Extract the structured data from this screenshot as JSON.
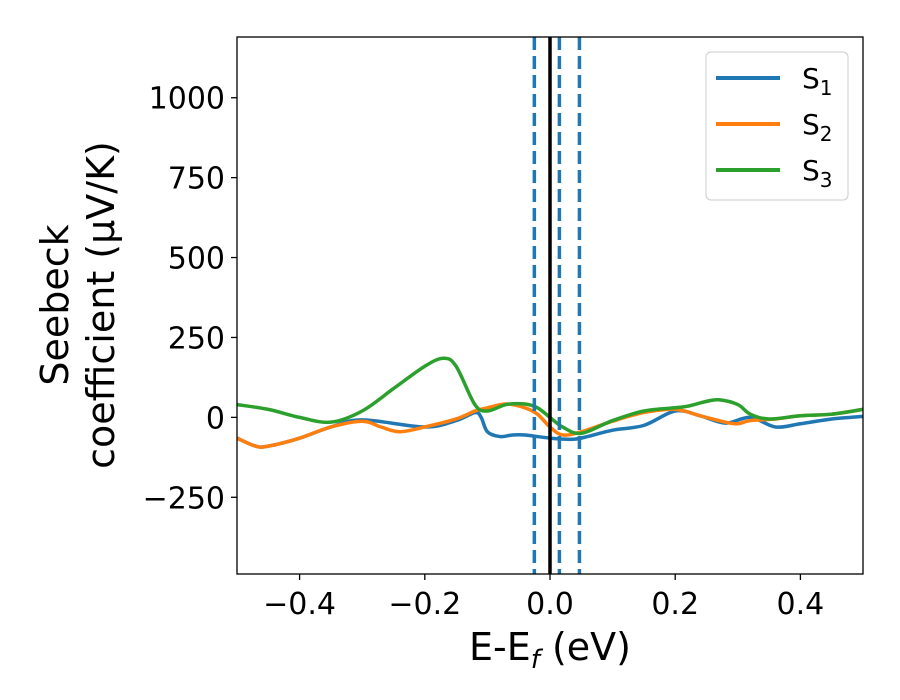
{
  "chart_data": {
    "type": "line",
    "title": "",
    "xlabel": {
      "base": "E-E",
      "sub": "f",
      "rest": " (eV)"
    },
    "ylabel": {
      "line1": "Seebeck",
      "line2": "coefficient  (μV/K)"
    },
    "xlim": [
      -0.5,
      0.5
    ],
    "ylim": [
      -490,
      1190
    ],
    "xticks": [
      -0.4,
      -0.2,
      0.0,
      0.2,
      0.4
    ],
    "xtick_labels": [
      "−0.4",
      "−0.2",
      "0.0",
      "0.2",
      "0.4"
    ],
    "yticks": [
      -250,
      0,
      250,
      500,
      750,
      1000
    ],
    "ytick_labels": [
      "−250",
      "0",
      "250",
      "500",
      "750",
      "1000"
    ],
    "grid": false,
    "legend_position": "top-right",
    "series": [
      {
        "name": "S1",
        "label_base": "S",
        "label_sub": "1",
        "color": "#1f77b4",
        "x": [
          -0.5,
          -0.47,
          -0.45,
          -0.4,
          -0.35,
          -0.3,
          -0.2,
          -0.15,
          -0.12,
          -0.11,
          -0.1,
          -0.08,
          -0.06,
          -0.04,
          -0.02,
          0.0,
          0.02,
          0.04,
          0.06,
          0.1,
          0.15,
          0.2,
          0.24,
          0.28,
          0.32,
          0.36,
          0.4,
          0.45,
          0.5
        ],
        "values": [
          -65,
          -90,
          -90,
          -65,
          -30,
          -8,
          -30,
          -10,
          15,
          0,
          -45,
          -60,
          -55,
          -55,
          -60,
          -65,
          -68,
          -68,
          -60,
          -40,
          -25,
          20,
          5,
          -18,
          0,
          -30,
          -20,
          -5,
          3
        ]
      },
      {
        "name": "S2",
        "label_base": "S",
        "label_sub": "2",
        "color": "#ff7f0e",
        "x": [
          -0.5,
          -0.47,
          -0.45,
          -0.4,
          -0.35,
          -0.3,
          -0.27,
          -0.24,
          -0.2,
          -0.15,
          -0.12,
          -0.1,
          -0.07,
          -0.04,
          -0.02,
          0.0,
          0.02,
          0.05,
          0.1,
          0.15,
          0.2,
          0.24,
          0.28,
          0.3,
          0.32,
          0.36,
          0.4,
          0.45,
          0.5
        ],
        "values": [
          -65,
          -90,
          -90,
          -65,
          -30,
          -12,
          -30,
          -45,
          -30,
          -5,
          20,
          30,
          42,
          30,
          10,
          -30,
          -55,
          -45,
          -12,
          15,
          25,
          5,
          -15,
          -20,
          -10,
          -5,
          5,
          10,
          25
        ]
      },
      {
        "name": "S3",
        "label_base": "S",
        "label_sub": "3",
        "color": "#2ca02c",
        "x": [
          -0.5,
          -0.45,
          -0.4,
          -0.35,
          -0.3,
          -0.25,
          -0.2,
          -0.17,
          -0.15,
          -0.12,
          -0.1,
          -0.07,
          -0.04,
          -0.02,
          0.0,
          0.02,
          0.05,
          0.1,
          0.15,
          0.2,
          0.22,
          0.25,
          0.27,
          0.3,
          0.32,
          0.35,
          0.4,
          0.45,
          0.5
        ],
        "values": [
          40,
          25,
          0,
          -15,
          20,
          90,
          160,
          185,
          160,
          40,
          20,
          40,
          42,
          30,
          0,
          -30,
          -50,
          -10,
          20,
          30,
          35,
          50,
          55,
          40,
          10,
          -5,
          5,
          10,
          25
        ]
      }
    ],
    "vlines": [
      {
        "x": -0.025,
        "style": "dashed",
        "color": "#1f77b4"
      },
      {
        "x": 0.0,
        "style": "solid",
        "color": "#000000"
      },
      {
        "x": 0.015,
        "style": "dashed",
        "color": "#1f77b4"
      },
      {
        "x": 0.047,
        "style": "dashed",
        "color": "#1f77b4"
      }
    ]
  }
}
